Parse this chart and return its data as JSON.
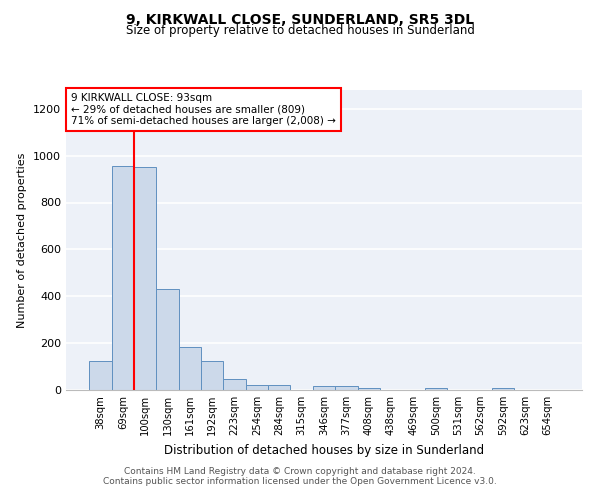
{
  "title1": "9, KIRKWALL CLOSE, SUNDERLAND, SR5 3DL",
  "title2": "Size of property relative to detached houses in Sunderland",
  "xlabel": "Distribution of detached houses by size in Sunderland",
  "ylabel": "Number of detached properties",
  "categories": [
    "38sqm",
    "69sqm",
    "100sqm",
    "130sqm",
    "161sqm",
    "192sqm",
    "223sqm",
    "254sqm",
    "284sqm",
    "315sqm",
    "346sqm",
    "377sqm",
    "408sqm",
    "438sqm",
    "469sqm",
    "500sqm",
    "531sqm",
    "562sqm",
    "592sqm",
    "623sqm",
    "654sqm"
  ],
  "bar_values": [
    125,
    955,
    950,
    430,
    185,
    125,
    45,
    22,
    22,
    0,
    18,
    18,
    10,
    0,
    0,
    10,
    0,
    0,
    10,
    0,
    0
  ],
  "bar_color": "#ccd9ea",
  "bar_edge_color": "#6090c0",
  "property_line_color": "red",
  "annotation_text": "9 KIRKWALL CLOSE: 93sqm\n← 29% of detached houses are smaller (809)\n71% of semi-detached houses are larger (2,008) →",
  "annotation_box_color": "white",
  "annotation_box_edge_color": "red",
  "ylim": [
    0,
    1280
  ],
  "yticks": [
    0,
    200,
    400,
    600,
    800,
    1000,
    1200
  ],
  "footer1": "Contains HM Land Registry data © Crown copyright and database right 2024.",
  "footer2": "Contains public sector information licensed under the Open Government Licence v3.0.",
  "bg_color": "#edf1f8"
}
